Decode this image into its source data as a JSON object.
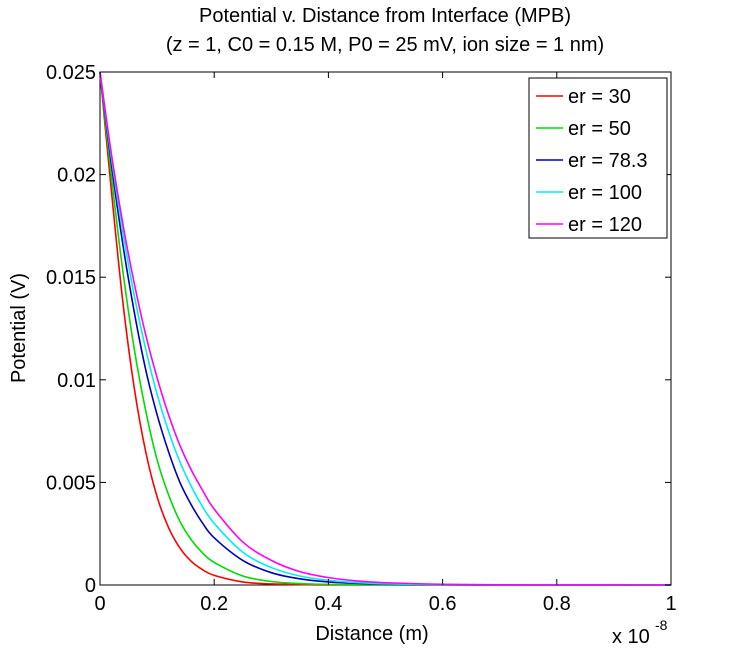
{
  "chart_data": {
    "type": "line",
    "title": "Potential v. Distance from Interface (MPB)",
    "subtitle": "(z = 1, C0 = 0.15 M, P0 = 25 mV, ion size = 1 nm)",
    "xlabel": "Distance (m)",
    "ylabel": "Potential (V)",
    "x_multiplier": "x 10",
    "x_multiplier_exponent": "-8",
    "xlim": [
      0,
      1
    ],
    "ylim": [
      0,
      0.025
    ],
    "x_ticks": [
      0,
      0.2,
      0.4,
      0.6,
      0.8,
      1
    ],
    "x_tick_labels": [
      "0",
      "0.2",
      "0.4",
      "0.6",
      "0.8",
      "1"
    ],
    "y_ticks": [
      0,
      0.005,
      0.01,
      0.015,
      0.02,
      0.025
    ],
    "y_tick_labels": [
      "0",
      "0.005",
      "0.01",
      "0.015",
      "0.02",
      "0.025"
    ],
    "grid": false,
    "legend_position": "top-right",
    "x": [
      0,
      0.02,
      0.04,
      0.06,
      0.08,
      0.1,
      0.12,
      0.14,
      0.16,
      0.18,
      0.2,
      0.25,
      0.3,
      0.35,
      0.4,
      0.45,
      0.5,
      0.6,
      0.7,
      0.8,
      0.9,
      1.0
    ],
    "series": [
      {
        "name": "er = 30",
        "color": "#ff0000",
        "values": [
          0.025,
          0.0192,
          0.0138,
          0.0096,
          0.0065,
          0.0043,
          0.0028,
          0.0018,
          0.00115,
          0.00074,
          0.00047,
          0.00015,
          5e-05,
          2e-05,
          5e-06,
          2e-06,
          1e-06,
          0,
          0,
          0,
          0,
          0
        ]
      },
      {
        "name": "er = 50",
        "color": "#00dd00",
        "values": [
          0.025,
          0.0199,
          0.0153,
          0.0115,
          0.0085,
          0.0061,
          0.0044,
          0.0031,
          0.0022,
          0.00155,
          0.0011,
          0.00044,
          0.00017,
          7e-05,
          2.6e-05,
          1e-05,
          4e-06,
          1e-06,
          0,
          0,
          0,
          0
        ]
      },
      {
        "name": "er = 78.3",
        "color": "#0000bb",
        "values": [
          0.025,
          0.0205,
          0.0166,
          0.0133,
          0.0105,
          0.0083,
          0.0065,
          0.005,
          0.0039,
          0.003,
          0.0023,
          0.0012,
          0.0006,
          0.0003,
          0.00015,
          8e-05,
          4e-05,
          1e-05,
          3e-06,
          1e-06,
          0,
          0
        ]
      },
      {
        "name": "er = 100",
        "color": "#00eeee",
        "values": [
          0.025,
          0.0208,
          0.0172,
          0.0141,
          0.0115,
          0.0093,
          0.0075,
          0.006,
          0.0048,
          0.0038,
          0.003,
          0.0016,
          0.00085,
          0.00044,
          0.00023,
          0.00012,
          6e-05,
          1.6e-05,
          4e-06,
          1e-06,
          0,
          0
        ]
      },
      {
        "name": "er = 120",
        "color": "#ff00ff",
        "values": [
          0.025,
          0.021,
          0.0176,
          0.0147,
          0.0122,
          0.0101,
          0.0083,
          0.0068,
          0.0056,
          0.0046,
          0.0037,
          0.0021,
          0.0012,
          0.00065,
          0.00036,
          0.0002,
          0.00011,
          3.4e-05,
          1e-05,
          3e-06,
          1e-06,
          0
        ]
      }
    ]
  }
}
